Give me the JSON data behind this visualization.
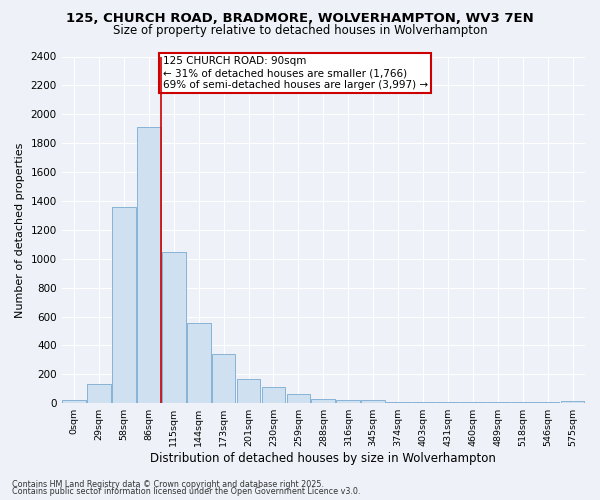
{
  "title": "125, CHURCH ROAD, BRADMORE, WOLVERHAMPTON, WV3 7EN",
  "subtitle": "Size of property relative to detached houses in Wolverhampton",
  "xlabel": "Distribution of detached houses by size in Wolverhampton",
  "ylabel": "Number of detached properties",
  "categories": [
    "0sqm",
    "29sqm",
    "58sqm",
    "86sqm",
    "115sqm",
    "144sqm",
    "173sqm",
    "201sqm",
    "230sqm",
    "259sqm",
    "288sqm",
    "316sqm",
    "345sqm",
    "374sqm",
    "403sqm",
    "431sqm",
    "460sqm",
    "489sqm",
    "518sqm",
    "546sqm",
    "575sqm"
  ],
  "values": [
    20,
    130,
    1360,
    1910,
    1050,
    555,
    340,
    170,
    110,
    65,
    30,
    25,
    20,
    5,
    5,
    5,
    5,
    5,
    5,
    5,
    15
  ],
  "bar_color": "#cfe0f0",
  "bar_edge_color": "#7aaad0",
  "vline_x_index": 3,
  "vline_color": "#cc0000",
  "annotation_text": "125 CHURCH ROAD: 90sqm\n← 31% of detached houses are smaller (1,766)\n69% of semi-detached houses are larger (3,997) →",
  "annotation_box_color": "#ffffff",
  "annotation_box_edge": "#cc0000",
  "ylim": [
    0,
    2400
  ],
  "yticks": [
    0,
    200,
    400,
    600,
    800,
    1000,
    1200,
    1400,
    1600,
    1800,
    2000,
    2200,
    2400
  ],
  "footer_line1": "Contains HM Land Registry data © Crown copyright and database right 2025.",
  "footer_line2": "Contains public sector information licensed under the Open Government Licence v3.0.",
  "bg_color": "#eef2f8",
  "grid_color": "#ffffff"
}
